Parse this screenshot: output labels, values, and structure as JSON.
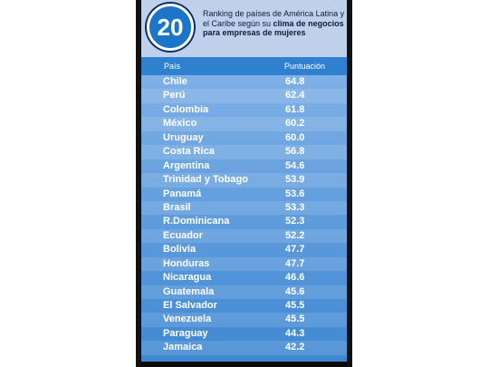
{
  "badge": "20",
  "title_parts": {
    "normal": "Ranking de países de América Latina y el Caribe según su ",
    "bold": "clima de negocios para empresas de mujeres"
  },
  "column_headers": {
    "country": "País",
    "score": "Puntuación"
  },
  "colors": {
    "badge": "#1b75c9",
    "header_bg": "#bfd1ea",
    "table_top": "#7fb0e6",
    "table_bottom": "#3f88d3"
  },
  "chart_data": {
    "type": "table",
    "title": "Ranking de países de América Latina y el Caribe según su clima de negocios para empresas de mujeres",
    "columns": [
      "País",
      "Puntuación"
    ],
    "rows": [
      {
        "country": "Chile",
        "score": "64.8"
      },
      {
        "country": "Perú",
        "score": "62.4"
      },
      {
        "country": "Colombia",
        "score": "61.8"
      },
      {
        "country": "México",
        "score": "60.2"
      },
      {
        "country": "Uruguay",
        "score": "60.0"
      },
      {
        "country": "Costa Rica",
        "score": "56.8"
      },
      {
        "country": "Argentina",
        "score": "54.6"
      },
      {
        "country": "Trinidad y Tobago",
        "score": "53.9"
      },
      {
        "country": "Panamá",
        "score": "53.6"
      },
      {
        "country": "Brasil",
        "score": "53.3"
      },
      {
        "country": "R.Dominicana",
        "score": "52.3"
      },
      {
        "country": "Ecuador",
        "score": "52.2"
      },
      {
        "country": "Bolivia",
        "score": "47.7"
      },
      {
        "country": "Honduras",
        "score": "47.7"
      },
      {
        "country": "Nicaragua",
        "score": "46.6"
      },
      {
        "country": "Guatemala",
        "score": "45.6"
      },
      {
        "country": "El Salvador",
        "score": "45.5"
      },
      {
        "country": "Venezuela",
        "score": "45.5"
      },
      {
        "country": "Paraguay",
        "score": "44.3"
      },
      {
        "country": "Jamaica",
        "score": "42.2"
      }
    ]
  }
}
